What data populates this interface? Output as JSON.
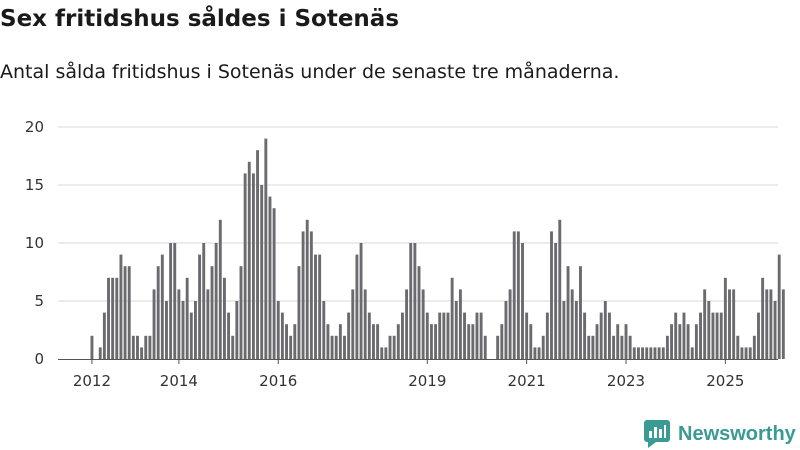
{
  "colors": {
    "bar": "#6b6a6f",
    "highlight": "#2a9d94",
    "grid": "#d9d9d9",
    "axis": "#555555",
    "brand": "#3a9a94"
  },
  "branding": {
    "name": "Newsworthy",
    "icon": "bar-chart-logo-icon"
  },
  "chart_data": {
    "type": "bar",
    "title": "Sex fritidshus såldes i Sotenäs",
    "subtitle": "Antal sålda fritidshus i Sotenäs under de senaste tre månaderna.",
    "xlabel": "",
    "ylabel": "",
    "ylim": [
      0,
      20
    ],
    "yticks": [
      0,
      5,
      10,
      15,
      20
    ],
    "x_start_index": 2,
    "x_tick_labels": [
      {
        "index": 2,
        "label": "2012"
      },
      {
        "index": 23,
        "label": "2014"
      },
      {
        "index": 47,
        "label": "2016"
      },
      {
        "index": 83,
        "label": "2019"
      },
      {
        "index": 107,
        "label": "2021"
      },
      {
        "index": 131,
        "label": "2023"
      },
      {
        "index": 155,
        "label": "2025"
      }
    ],
    "highlight": {
      "index": 170,
      "label": "6"
    },
    "values": [
      2,
      0,
      1,
      4,
      7,
      7,
      7,
      9,
      8,
      8,
      2,
      2,
      1,
      2,
      2,
      6,
      8,
      9,
      5,
      10,
      10,
      6,
      5,
      7,
      4,
      5,
      9,
      10,
      6,
      8,
      10,
      12,
      7,
      4,
      2,
      5,
      8,
      16,
      17,
      16,
      18,
      15,
      19,
      14,
      13,
      5,
      4,
      3,
      2,
      3,
      8,
      11,
      12,
      11,
      9,
      9,
      5,
      3,
      2,
      2,
      3,
      2,
      4,
      6,
      9,
      10,
      6,
      4,
      3,
      3,
      1,
      1,
      2,
      2,
      3,
      4,
      6,
      10,
      10,
      8,
      6,
      4,
      3,
      3,
      4,
      4,
      4,
      7,
      5,
      6,
      4,
      3,
      3,
      4,
      4,
      2,
      0,
      0,
      2,
      3,
      5,
      6,
      11,
      11,
      10,
      4,
      3,
      1,
      1,
      2,
      4,
      11,
      10,
      12,
      5,
      8,
      6,
      5,
      8,
      4,
      2,
      2,
      3,
      4,
      5,
      4,
      2,
      3,
      2,
      3,
      2,
      1,
      1,
      1,
      1,
      1,
      1,
      1,
      1,
      2,
      3,
      4,
      3,
      4,
      3,
      1,
      3,
      4,
      6,
      5,
      4,
      4,
      4,
      7,
      6,
      6,
      2,
      1,
      1,
      1,
      2,
      4,
      7,
      6,
      6,
      5,
      9,
      6
    ]
  }
}
